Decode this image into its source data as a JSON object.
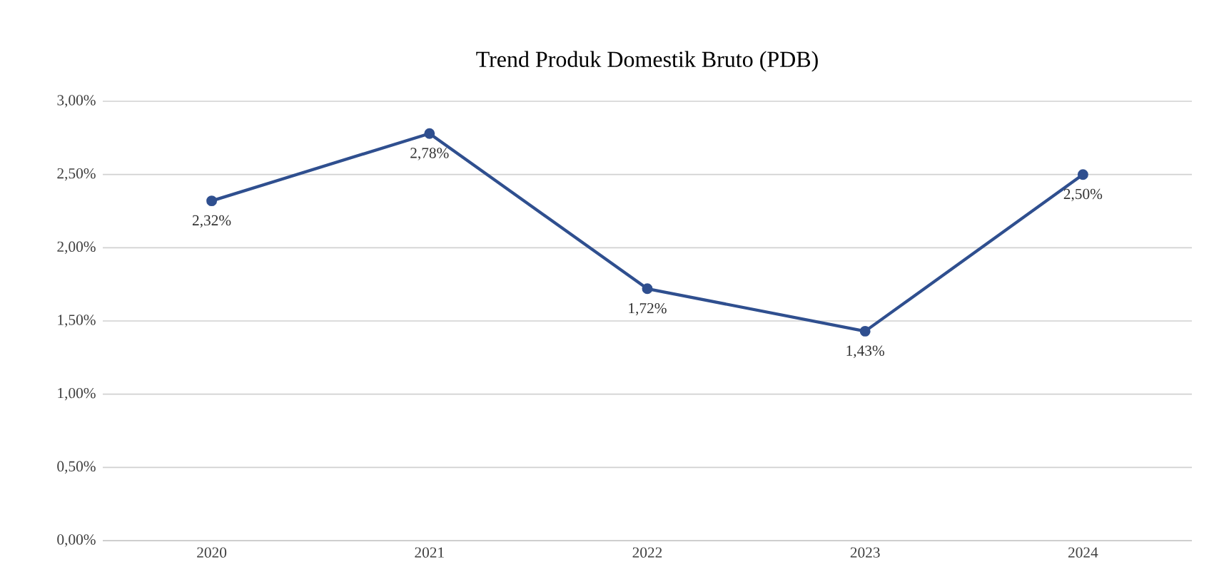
{
  "chart_data": {
    "type": "line",
    "title": "Trend Produk Domestik Bruto (PDB)",
    "categories": [
      "2020",
      "2021",
      "2022",
      "2023",
      "2024"
    ],
    "series": [
      {
        "color": "#2f4f8f",
        "values": [
          2.32,
          2.78,
          1.72,
          1.43,
          2.5
        ],
        "value_labels": [
          "2,32%",
          "2,78%",
          "1,72%",
          "1,43%",
          "2,50%"
        ]
      }
    ],
    "ylim": [
      0,
      3
    ],
    "yticks": [
      {
        "value": 0,
        "label": "0,00%"
      },
      {
        "value": 0.5,
        "label": "0,50%"
      },
      {
        "value": 1,
        "label": "1,00%"
      },
      {
        "value": 1.5,
        "label": "1,50%"
      },
      {
        "value": 2,
        "label": "2,00%"
      },
      {
        "value": 2.5,
        "label": "2,50%"
      },
      {
        "value": 3,
        "label": "3,00%"
      }
    ],
    "grid": "y",
    "marker": "circle",
    "line_style": "solid"
  }
}
